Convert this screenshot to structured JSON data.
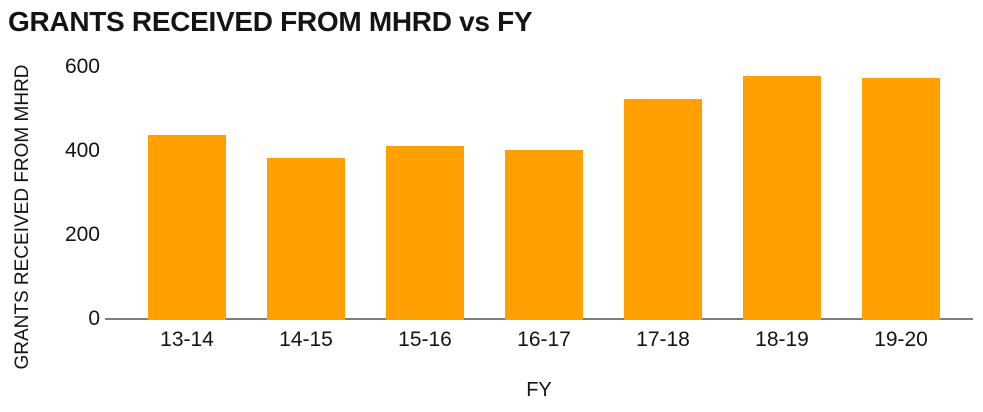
{
  "title": "GRANTS RECEIVED FROM MHRD vs FY",
  "chart_data": {
    "type": "bar",
    "title": "GRANTS RECEIVED FROM MHRD vs FY",
    "categories": [
      "13-14",
      "14-15",
      "15-16",
      "16-17",
      "17-18",
      "18-19",
      "19-20"
    ],
    "values": [
      440,
      385,
      415,
      405,
      525,
      580,
      575
    ],
    "xlabel": "FY",
    "ylabel": "GRANTS RECEIVED FROM MHRD",
    "ylim": [
      0,
      600
    ],
    "yticks": [
      0,
      200,
      400,
      600
    ],
    "grid": false,
    "legend": false,
    "colors": {
      "bar": "#FFA000",
      "axis_line": "#7d7d7d",
      "text": "#141414",
      "background": "#FFFFFF"
    }
  }
}
